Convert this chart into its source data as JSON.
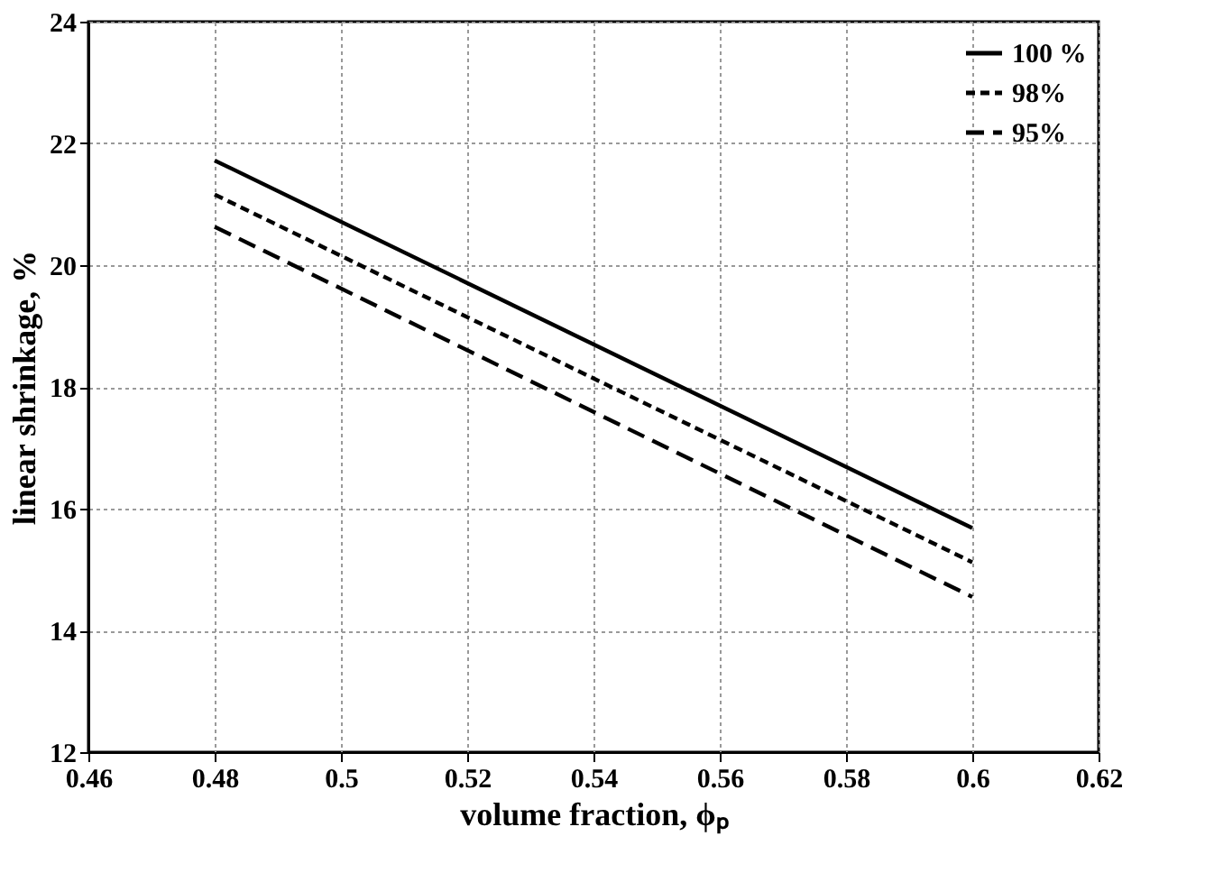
{
  "chart_data": {
    "type": "line",
    "xlabel": "volume fraction, ϕₚ",
    "ylabel": "linear shrinkage, %",
    "x": [
      0.48,
      0.6
    ],
    "series": [
      {
        "name": "100 %",
        "color": "#000000",
        "line_style": "solid",
        "values": [
          21.72,
          15.68
        ]
      },
      {
        "name": "98%",
        "color": "#000000",
        "line_style": "dashed",
        "values": [
          21.16,
          15.12
        ]
      },
      {
        "name": "95%",
        "color": "#000000",
        "line_style": "longdash",
        "values": [
          20.63,
          14.55
        ]
      }
    ],
    "xlim": [
      0.46,
      0.62
    ],
    "xticks": [
      0.46,
      0.48,
      0.5,
      0.52,
      0.54,
      0.56,
      0.58,
      0.6,
      0.62
    ],
    "ylim": [
      12,
      24
    ],
    "yticks": [
      12,
      14,
      16,
      18,
      20,
      22,
      24
    ],
    "grid": true,
    "legend": "top right",
    "marker": "none"
  }
}
